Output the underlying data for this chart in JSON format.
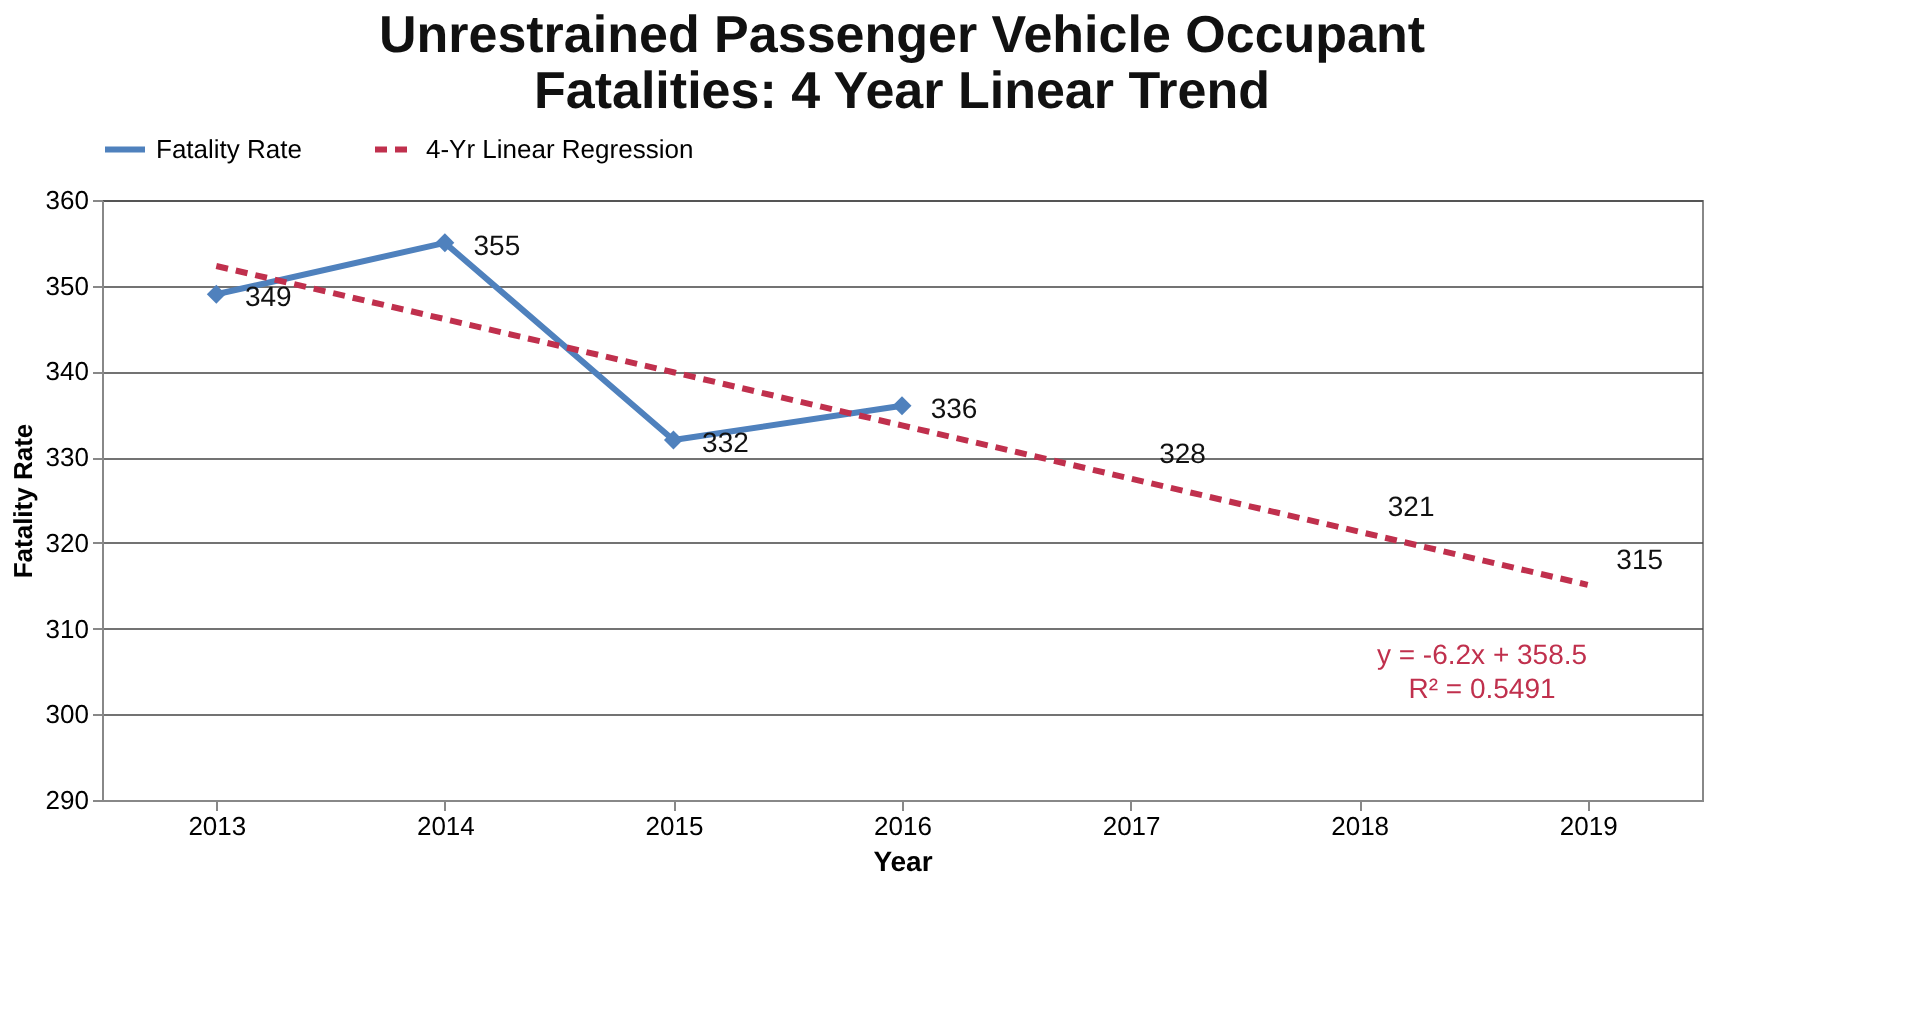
{
  "chart_data": {
    "type": "line",
    "title": "Unrestrained Passenger Vehicle Occupant Fatalities: 4 Year Linear Trend",
    "xlabel": "Year",
    "ylabel": "Fatality Rate",
    "categories": [
      "2013",
      "2014",
      "2015",
      "2016",
      "2017",
      "2018",
      "2019"
    ],
    "series": [
      {
        "name": "Fatality Rate",
        "color": "#4f81bd",
        "marker": "diamond",
        "line_style": "solid",
        "values": [
          349,
          355,
          332,
          336,
          null,
          null,
          null
        ],
        "value_labels": [
          "349",
          "355",
          "332",
          "336",
          null,
          null,
          null
        ]
      },
      {
        "name": "4-Yr Linear Regression",
        "color": "#c0304d",
        "marker": "none",
        "line_style": "dashed",
        "values": [
          352.3,
          346.1,
          339.9,
          333.7,
          327.5,
          321.3,
          315.1
        ],
        "value_labels": [
          null,
          null,
          null,
          null,
          "328",
          "321",
          "315"
        ]
      }
    ],
    "ylim": [
      290,
      360
    ],
    "yticks": [
      290,
      300,
      310,
      320,
      330,
      340,
      350,
      360
    ],
    "grid": "y",
    "legend": "top",
    "annotations": [
      "y = -6.2x + 358.5",
      "R² = 0.5491"
    ]
  }
}
